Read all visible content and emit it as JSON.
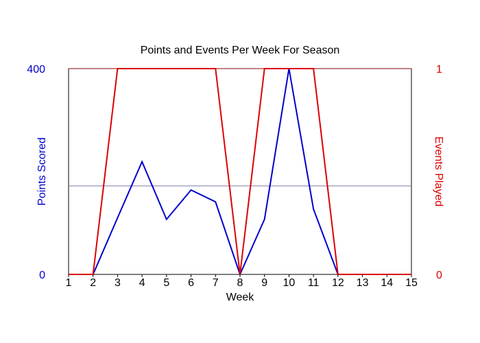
{
  "chart_data": {
    "type": "line",
    "title": "Points and Events Per Week For Season",
    "xlabel": "Week",
    "ylabel_left": "Points Scored",
    "ylabel_right": "Events Played",
    "x": [
      1,
      2,
      3,
      4,
      5,
      6,
      7,
      8,
      9,
      10,
      11,
      12,
      13,
      14,
      15
    ],
    "x_tick_labels": [
      "1",
      "2",
      "3",
      "4",
      "5",
      "6",
      "7",
      "8",
      "9",
      "10",
      "11",
      "12",
      "13",
      "14",
      "15"
    ],
    "xlim": [
      1,
      15
    ],
    "y_left_lim": [
      0,
      400
    ],
    "y_right_lim": [
      0,
      1
    ],
    "y_left_tick_labels": [
      "0",
      "400"
    ],
    "y_right_tick_labels": [
      "0",
      "1"
    ],
    "reference_line_left": 172,
    "grid": false,
    "series": [
      {
        "name": "Points Scored",
        "axis": "left",
        "color": "#0000cc",
        "values": [
          0,
          0,
          110,
          219,
          107,
          164,
          141,
          0,
          107,
          400,
          127,
          0,
          0,
          0,
          0
        ]
      },
      {
        "name": "Events Played",
        "axis": "right",
        "color": "#dd0000",
        "values": [
          0,
          0,
          1,
          1,
          1,
          1,
          1,
          0,
          1,
          1,
          1,
          0,
          0,
          0,
          0
        ]
      }
    ],
    "colors": {
      "left_axis_text": "#0000cc",
      "right_axis_text": "#dd0000",
      "frame_top": "#880000",
      "frame": "#000000",
      "reference_line": "#7777aa"
    }
  }
}
